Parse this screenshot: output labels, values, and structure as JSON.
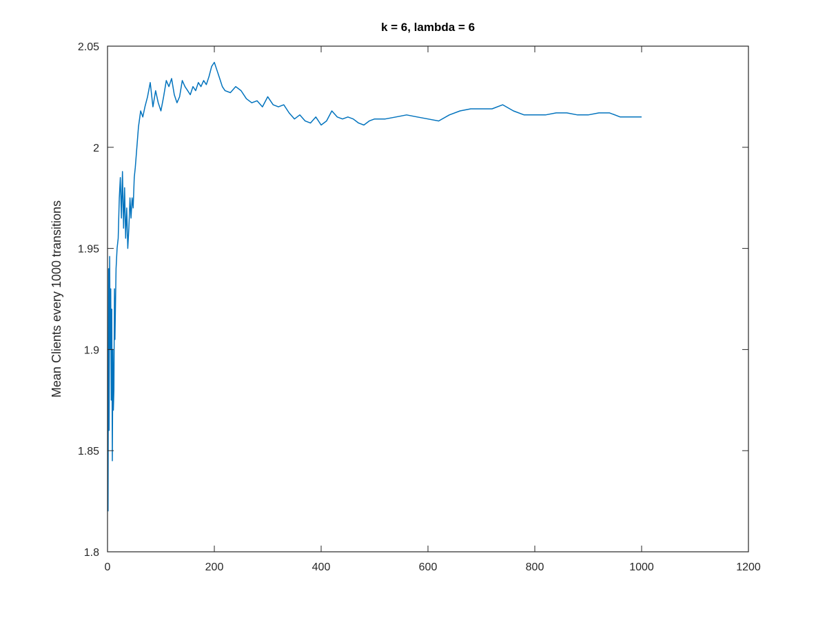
{
  "chart_data": {
    "type": "line",
    "title": "k = 6, lambda = 6",
    "xlabel": "",
    "ylabel": "Mean Clients every 1000 transitions",
    "xlim": [
      0,
      1200
    ],
    "ylim": [
      1.8,
      2.05
    ],
    "xticks": [
      0,
      200,
      400,
      600,
      800,
      1000,
      1200
    ],
    "yticks": [
      1.8,
      1.85,
      1.9,
      1.95,
      2.0,
      2.05
    ],
    "xtick_labels": [
      "0",
      "200",
      "400",
      "600",
      "800",
      "1000",
      "1200"
    ],
    "ytick_labels": [
      "1.8",
      "1.85",
      "1.9",
      "1.95",
      "2",
      "2.05"
    ],
    "grid": false,
    "color": "#0072BD",
    "series": [
      {
        "name": "",
        "x": [
          1,
          2,
          3,
          4,
          5,
          6,
          7,
          8,
          9,
          10,
          11,
          12,
          13,
          14,
          16,
          18,
          20,
          22,
          24,
          26,
          28,
          30,
          32,
          34,
          36,
          38,
          40,
          42,
          44,
          46,
          48,
          50,
          52,
          55,
          58,
          62,
          66,
          70,
          75,
          80,
          85,
          90,
          95,
          100,
          105,
          110,
          115,
          120,
          125,
          130,
          135,
          140,
          145,
          150,
          155,
          160,
          165,
          170,
          175,
          180,
          185,
          190,
          195,
          200,
          205,
          210,
          215,
          220,
          230,
          240,
          250,
          260,
          270,
          280,
          290,
          300,
          310,
          320,
          330,
          340,
          350,
          360,
          370,
          380,
          390,
          400,
          410,
          420,
          430,
          440,
          450,
          460,
          470,
          480,
          490,
          500,
          520,
          540,
          560,
          580,
          600,
          620,
          640,
          660,
          680,
          700,
          720,
          740,
          760,
          780,
          800,
          820,
          840,
          860,
          880,
          900,
          920,
          940,
          960,
          980,
          1000
        ],
        "y": [
          1.82,
          1.94,
          1.86,
          1.946,
          1.9,
          1.93,
          1.875,
          1.92,
          1.845,
          1.9,
          1.87,
          1.88,
          1.93,
          1.905,
          1.94,
          1.95,
          1.955,
          1.975,
          1.985,
          1.965,
          1.988,
          1.96,
          1.98,
          1.955,
          1.97,
          1.95,
          1.96,
          1.975,
          1.965,
          1.975,
          1.97,
          1.985,
          1.99,
          2.0,
          2.01,
          2.018,
          2.015,
          2.02,
          2.025,
          2.032,
          2.02,
          2.028,
          2.022,
          2.018,
          2.025,
          2.033,
          2.03,
          2.034,
          2.026,
          2.022,
          2.025,
          2.033,
          2.03,
          2.028,
          2.026,
          2.03,
          2.028,
          2.032,
          2.03,
          2.033,
          2.031,
          2.035,
          2.04,
          2.042,
          2.038,
          2.034,
          2.03,
          2.028,
          2.027,
          2.03,
          2.028,
          2.024,
          2.022,
          2.023,
          2.02,
          2.025,
          2.021,
          2.02,
          2.021,
          2.017,
          2.014,
          2.016,
          2.013,
          2.012,
          2.015,
          2.011,
          2.013,
          2.018,
          2.015,
          2.014,
          2.015,
          2.014,
          2.012,
          2.011,
          2.013,
          2.014,
          2.014,
          2.015,
          2.016,
          2.015,
          2.014,
          2.013,
          2.016,
          2.018,
          2.019,
          2.019,
          2.019,
          2.021,
          2.018,
          2.016,
          2.016,
          2.016,
          2.017,
          2.017,
          2.016,
          2.016,
          2.017,
          2.017,
          2.015,
          2.015,
          2.015
        ]
      }
    ]
  }
}
